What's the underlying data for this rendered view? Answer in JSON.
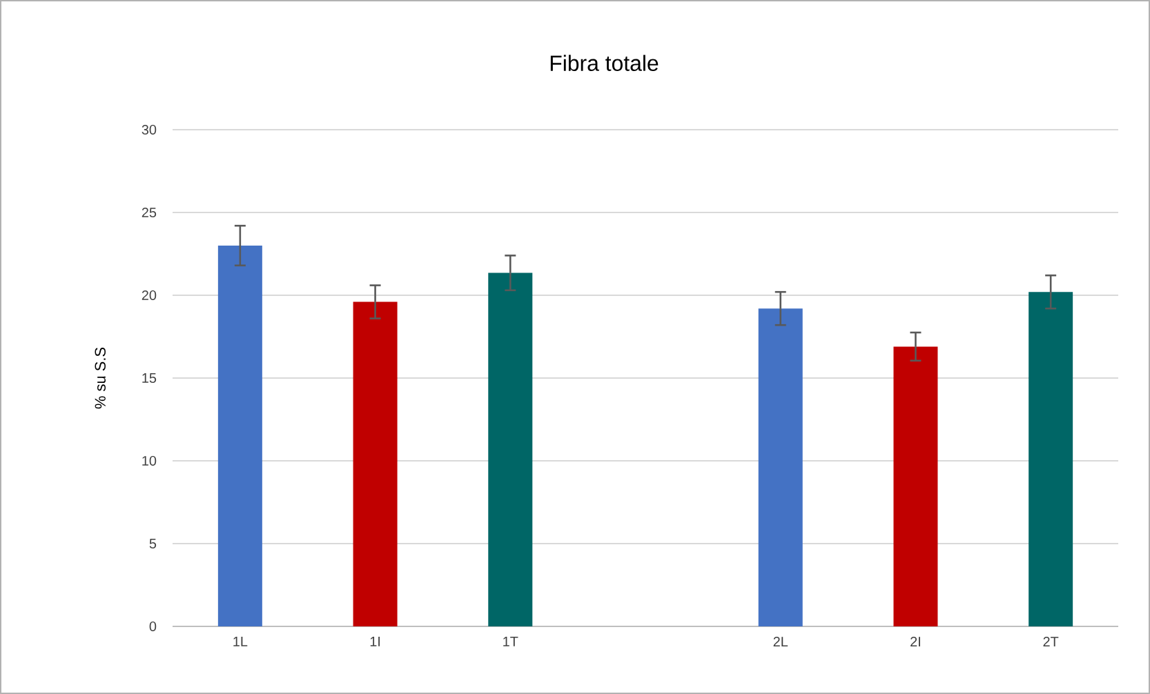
{
  "chart_data": {
    "type": "bar",
    "title": "Fibra totale",
    "ylabel": "% su S.S",
    "categories": [
      "1L",
      "1I",
      "1T",
      null,
      "2L",
      "2I",
      "2T"
    ],
    "values": [
      23.0,
      19.6,
      21.35,
      null,
      19.2,
      16.9,
      20.2
    ],
    "colors": [
      "#4472c4",
      "#c00000",
      "#006666",
      null,
      "#4472c4",
      "#c00000",
      "#006666"
    ],
    "errors": [
      1.2,
      1.0,
      1.05,
      null,
      1.0,
      0.85,
      1.0
    ],
    "ylim": [
      0,
      30
    ],
    "yticks": [
      0,
      5,
      10,
      15,
      20,
      25,
      30
    ],
    "grid": "y"
  }
}
